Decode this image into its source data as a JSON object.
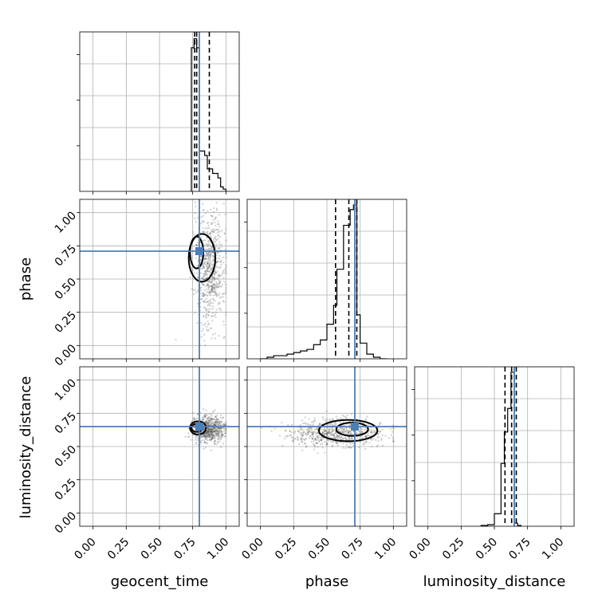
{
  "chart_data": {
    "type": "corner",
    "parameters": [
      "geocent_time",
      "phase",
      "luminosity_distance"
    ],
    "truths": {
      "geocent_time": 0.8,
      "phase": 0.71,
      "luminosity_distance": 0.65
    },
    "axis_range": [
      -0.1,
      1.1
    ],
    "ticks": [
      "0.00",
      "0.25",
      "0.50",
      "0.75",
      "1.00"
    ],
    "tick_values": [
      0.0,
      0.25,
      0.5,
      0.75,
      1.0
    ],
    "grid": true,
    "colors": {
      "truth": "#4c7fb5",
      "hist": "#000000",
      "scatter": "#555555"
    },
    "histograms": [
      {
        "parameter": "geocent_time",
        "bin_edges": [
          0.74,
          0.76,
          0.78,
          0.8,
          0.82,
          0.84,
          0.86,
          0.88,
          0.9,
          0.92,
          0.94,
          0.96,
          0.98,
          1.0
        ],
        "counts": [
          3.2,
          3.4,
          3.2,
          0.9,
          0.9,
          0.8,
          0.5,
          0.5,
          0.4,
          0.4,
          0.3,
          0.1,
          0.05
        ],
        "quantiles": [
          0.765,
          0.78,
          0.875
        ],
        "ylim": [
          0,
          3.5
        ]
      },
      {
        "parameter": "phase",
        "bin_edges": [
          0.0,
          0.05,
          0.1,
          0.15,
          0.2,
          0.25,
          0.3,
          0.35,
          0.4,
          0.45,
          0.5,
          0.55,
          0.575,
          0.6,
          0.625,
          0.65,
          0.675,
          0.7,
          0.725,
          0.75,
          0.8,
          0.85,
          0.9,
          0.95
        ],
        "counts": [
          0.0,
          0.01,
          0.02,
          0.02,
          0.03,
          0.04,
          0.05,
          0.06,
          0.09,
          0.12,
          0.22,
          0.34,
          0.57,
          0.57,
          0.85,
          0.85,
          0.95,
          0.98,
          0.28,
          0.1,
          0.03,
          0.01,
          0.0
        ],
        "quantiles": [
          0.565,
          0.665,
          0.725
        ],
        "ylim": [
          0,
          1.0
        ]
      },
      {
        "parameter": "luminosity_distance",
        "bin_edges": [
          0.4,
          0.45,
          0.5,
          0.55,
          0.575,
          0.6,
          0.625,
          0.65,
          0.675,
          0.7
        ],
        "counts": [
          0.005,
          0.01,
          0.08,
          0.4,
          0.6,
          0.75,
          0.98,
          0.02,
          0.005
        ],
        "quantiles": [
          0.58,
          0.63,
          0.665
        ],
        "ylim": [
          0,
          1.0
        ]
      }
    ],
    "scatter_panels": [
      {
        "x": "geocent_time",
        "y": "phase",
        "center": [
          0.88,
          0.58
        ],
        "spread": [
          0.06,
          0.22
        ],
        "n": 700
      },
      {
        "x": "geocent_time",
        "y": "luminosity_distance",
        "center": [
          0.87,
          0.63
        ],
        "spread": [
          0.06,
          0.05
        ],
        "n": 700
      },
      {
        "x": "phase",
        "y": "luminosity_distance",
        "center": [
          0.58,
          0.6
        ],
        "spread": [
          0.18,
          0.05
        ],
        "n": 700
      }
    ],
    "contours": [
      {
        "x": "geocent_time",
        "y": "phase",
        "inner": {
          "cx": 0.78,
          "cy": 0.7,
          "rx": 0.05,
          "ry": 0.12
        },
        "outer": {
          "cx": 0.82,
          "cy": 0.66,
          "rx": 0.1,
          "ry": 0.18
        }
      },
      {
        "x": "geocent_time",
        "y": "luminosity_distance",
        "inner": {
          "cx": 0.78,
          "cy": 0.64,
          "rx": 0.04,
          "ry": 0.03
        },
        "outer": {
          "cx": 0.79,
          "cy": 0.64,
          "rx": 0.06,
          "ry": 0.05
        }
      },
      {
        "x": "phase",
        "y": "luminosity_distance",
        "inner": {
          "cx": 0.69,
          "cy": 0.63,
          "rx": 0.12,
          "ry": 0.05
        },
        "outer": {
          "cx": 0.66,
          "cy": 0.62,
          "rx": 0.22,
          "ry": 0.08
        }
      }
    ]
  }
}
